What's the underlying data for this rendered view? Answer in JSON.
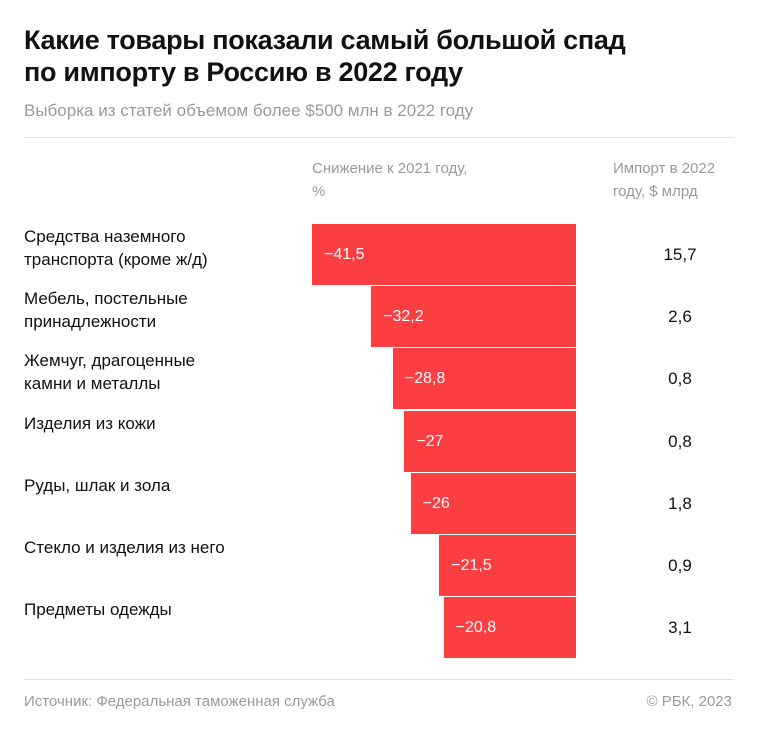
{
  "title_line1": "Какие товары показали самый большой спад",
  "title_line2": "по импорту в Россию в 2022 году",
  "subtitle": "Выборка из статей объемом более $500 млн в 2022 году",
  "colors": {
    "bar": "#fa3e41",
    "text": "#111111",
    "muted": "#9a9a9a"
  },
  "chart_data": {
    "type": "bar",
    "orientation": "horizontal",
    "column_header_bars_line1": "Снижение к 2021 году,",
    "column_header_bars_line2": "%",
    "column_header_values_line1": "Импорт в 2022",
    "column_header_values_line2": "году, $ млрд",
    "categories": [
      [
        "Средства наземного",
        "транспорта (кроме ж/д)"
      ],
      [
        "Мебель, постельные",
        "принадлежности"
      ],
      [
        "Жемчуг, драгоценные",
        "камни и металлы"
      ],
      [
        "Изделия из кожи",
        ""
      ],
      [
        "Руды, шлак и зола",
        ""
      ],
      [
        "Стекло и изделия из него",
        ""
      ],
      [
        "Предметы одежды",
        ""
      ]
    ],
    "values": [
      -41.5,
      -32.2,
      -28.8,
      -27,
      -26,
      -21.5,
      -20.8
    ],
    "value_labels": [
      "−41,5",
      "−32,2",
      "−28,8",
      "−27",
      "−26",
      "−21,5",
      "−20,8"
    ],
    "import_values": [
      "15,7",
      "2,6",
      "0,8",
      "0,8",
      "1,8",
      "0,9",
      "3,1"
    ]
  },
  "footer": {
    "source": "Источник: Федеральная таможенная служба",
    "copyright": "© РБК, 2023"
  }
}
